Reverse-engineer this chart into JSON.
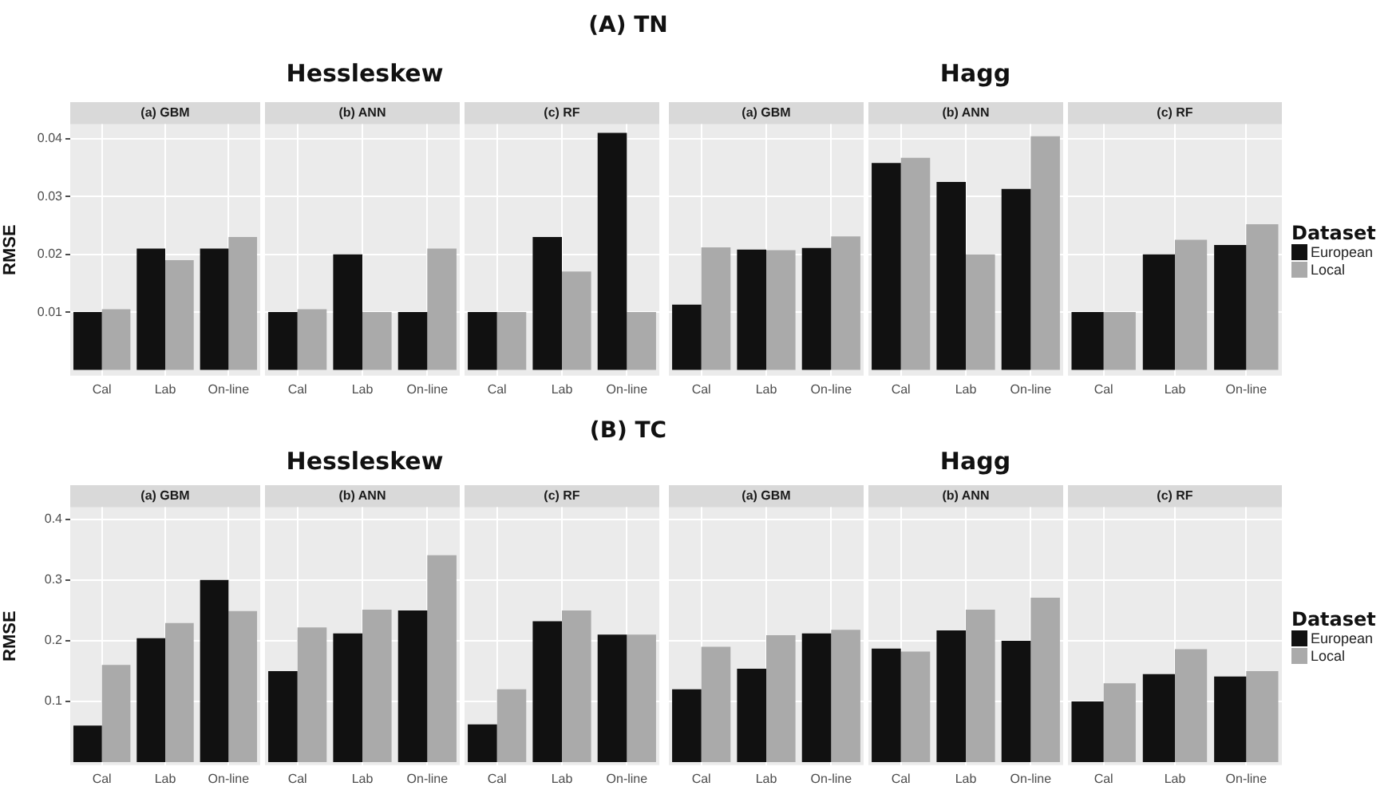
{
  "chart_data": [
    {
      "type": "bar",
      "title": "(a) GBM",
      "ylabel": "RMSE",
      "annotations": [
        "(A) TN",
        "Hessleskew"
      ],
      "categories": [
        "Cal",
        "Lab",
        "On-line"
      ],
      "series": [
        {
          "color": "#111111",
          "values": [
            0.01,
            0.021,
            0.021
          ]
        },
        {
          "color": "#aaaaaa",
          "values": [
            0.0105,
            0.019,
            0.023
          ]
        }
      ],
      "ylim": [
        -0.001,
        0.0425
      ],
      "yticks": [
        0.01,
        0.02,
        0.03,
        0.04
      ],
      "grid": true
    },
    {
      "type": "bar",
      "title": "(b) ANN",
      "categories": [
        "Cal",
        "Lab",
        "On-line"
      ],
      "series": [
        {
          "color": "#111111",
          "values": [
            0.01,
            0.02,
            0.01
          ]
        },
        {
          "color": "#aaaaaa",
          "values": [
            0.0105,
            0.01,
            0.021
          ]
        }
      ],
      "ylim": [
        -0.001,
        0.0425
      ],
      "yticks": [
        0.01,
        0.02,
        0.03,
        0.04
      ],
      "grid": true,
      "tick_labels": "x"
    },
    {
      "type": "bar",
      "title": "(c) RF",
      "categories": [
        "Cal",
        "Lab",
        "On-line"
      ],
      "series": [
        {
          "color": "#111111",
          "values": [
            0.01,
            0.023,
            0.041
          ]
        },
        {
          "color": "#aaaaaa",
          "values": [
            0.01,
            0.017,
            0.01
          ]
        }
      ],
      "ylim": [
        -0.001,
        0.0425
      ],
      "yticks": [
        0.01,
        0.02,
        0.03,
        0.04
      ],
      "grid": true,
      "tick_labels": "x"
    },
    {
      "type": "bar",
      "title": "(a) GBM",
      "annotations": [
        "Hagg"
      ],
      "categories": [
        "Cal",
        "Lab",
        "On-line"
      ],
      "series": [
        {
          "color": "#111111",
          "values": [
            0.0113,
            0.0208,
            0.0211
          ]
        },
        {
          "color": "#aaaaaa",
          "values": [
            0.0212,
            0.0207,
            0.0231
          ]
        }
      ],
      "ylim": [
        -0.001,
        0.0425
      ],
      "yticks": [
        0.01,
        0.02,
        0.03,
        0.04
      ],
      "grid": true,
      "tick_labels": "x"
    },
    {
      "type": "bar",
      "title": "(b) ANN",
      "categories": [
        "Cal",
        "Lab",
        "On-line"
      ],
      "series": [
        {
          "color": "#111111",
          "values": [
            0.0358,
            0.0325,
            0.0313
          ]
        },
        {
          "color": "#aaaaaa",
          "values": [
            0.0367,
            0.02,
            0.0404
          ]
        }
      ],
      "ylim": [
        -0.001,
        0.0425
      ],
      "yticks": [
        0.01,
        0.02,
        0.03,
        0.04
      ],
      "grid": true,
      "tick_labels": "x"
    },
    {
      "type": "bar",
      "title": "(c) RF",
      "legend": "right",
      "legend_title": "Dataset",
      "categories": [
        "Cal",
        "Lab",
        "On-line"
      ],
      "series": [
        {
          "name": "European",
          "color": "#111111",
          "values": [
            0.01,
            0.02,
            0.0216
          ]
        },
        {
          "name": "Local",
          "color": "#aaaaaa",
          "values": [
            0.01,
            0.0225,
            0.0252
          ]
        }
      ],
      "ylim": [
        -0.001,
        0.0425
      ],
      "yticks": [
        0.01,
        0.02,
        0.03,
        0.04
      ],
      "grid": true,
      "tick_labels": "x"
    },
    {
      "type": "bar",
      "title": "(a) GBM",
      "ylabel": "RMSE",
      "annotations": [
        "(B) TC",
        "Hessleskew"
      ],
      "categories": [
        "Cal",
        "Lab",
        "On-line"
      ],
      "series": [
        {
          "color": "#111111",
          "values": [
            0.06,
            0.204,
            0.3
          ]
        },
        {
          "color": "#aaaaaa",
          "values": [
            0.16,
            0.229,
            0.249
          ]
        }
      ],
      "ylim": [
        -0.005,
        0.42
      ],
      "yticks": [
        0.1,
        0.2,
        0.3,
        0.4
      ],
      "grid": true
    },
    {
      "type": "bar",
      "title": "(b) ANN",
      "categories": [
        "Cal",
        "Lab",
        "On-line"
      ],
      "series": [
        {
          "color": "#111111",
          "values": [
            0.15,
            0.212,
            0.25
          ]
        },
        {
          "color": "#aaaaaa",
          "values": [
            0.222,
            0.251,
            0.341
          ]
        }
      ],
      "ylim": [
        -0.005,
        0.42
      ],
      "yticks": [
        0.1,
        0.2,
        0.3,
        0.4
      ],
      "grid": true,
      "tick_labels": "x"
    },
    {
      "type": "bar",
      "title": "(c) RF",
      "categories": [
        "Cal",
        "Lab",
        "On-line"
      ],
      "series": [
        {
          "color": "#111111",
          "values": [
            0.062,
            0.232,
            0.21
          ]
        },
        {
          "color": "#aaaaaa",
          "values": [
            0.12,
            0.25,
            0.21
          ]
        }
      ],
      "ylim": [
        -0.005,
        0.42
      ],
      "yticks": [
        0.1,
        0.2,
        0.3,
        0.4
      ],
      "grid": true,
      "tick_labels": "x"
    },
    {
      "type": "bar",
      "title": "(a) GBM",
      "annotations": [
        "Hagg"
      ],
      "categories": [
        "Cal",
        "Lab",
        "On-line"
      ],
      "series": [
        {
          "color": "#111111",
          "values": [
            0.12,
            0.154,
            0.212
          ]
        },
        {
          "color": "#aaaaaa",
          "values": [
            0.19,
            0.209,
            0.218
          ]
        }
      ],
      "ylim": [
        -0.005,
        0.42
      ],
      "yticks": [
        0.1,
        0.2,
        0.3,
        0.4
      ],
      "grid": true,
      "tick_labels": "x"
    },
    {
      "type": "bar",
      "title": "(b) ANN",
      "categories": [
        "Cal",
        "Lab",
        "On-line"
      ],
      "series": [
        {
          "color": "#111111",
          "values": [
            0.187,
            0.217,
            0.2
          ]
        },
        {
          "color": "#aaaaaa",
          "values": [
            0.182,
            0.251,
            0.271
          ]
        }
      ],
      "ylim": [
        -0.005,
        0.42
      ],
      "yticks": [
        0.1,
        0.2,
        0.3,
        0.4
      ],
      "grid": true,
      "tick_labels": "x"
    },
    {
      "type": "bar",
      "title": "(c) RF",
      "legend": "right",
      "legend_title": "Dataset",
      "categories": [
        "Cal",
        "Lab",
        "On-line"
      ],
      "series": [
        {
          "name": "European",
          "color": "#111111",
          "values": [
            0.1,
            0.145,
            0.141
          ]
        },
        {
          "name": "Local",
          "color": "#aaaaaa",
          "values": [
            0.13,
            0.186,
            0.15
          ]
        }
      ],
      "ylim": [
        -0.005,
        0.42
      ],
      "yticks": [
        0.1,
        0.2,
        0.3,
        0.4
      ],
      "grid": true,
      "tick_labels": "x"
    }
  ]
}
